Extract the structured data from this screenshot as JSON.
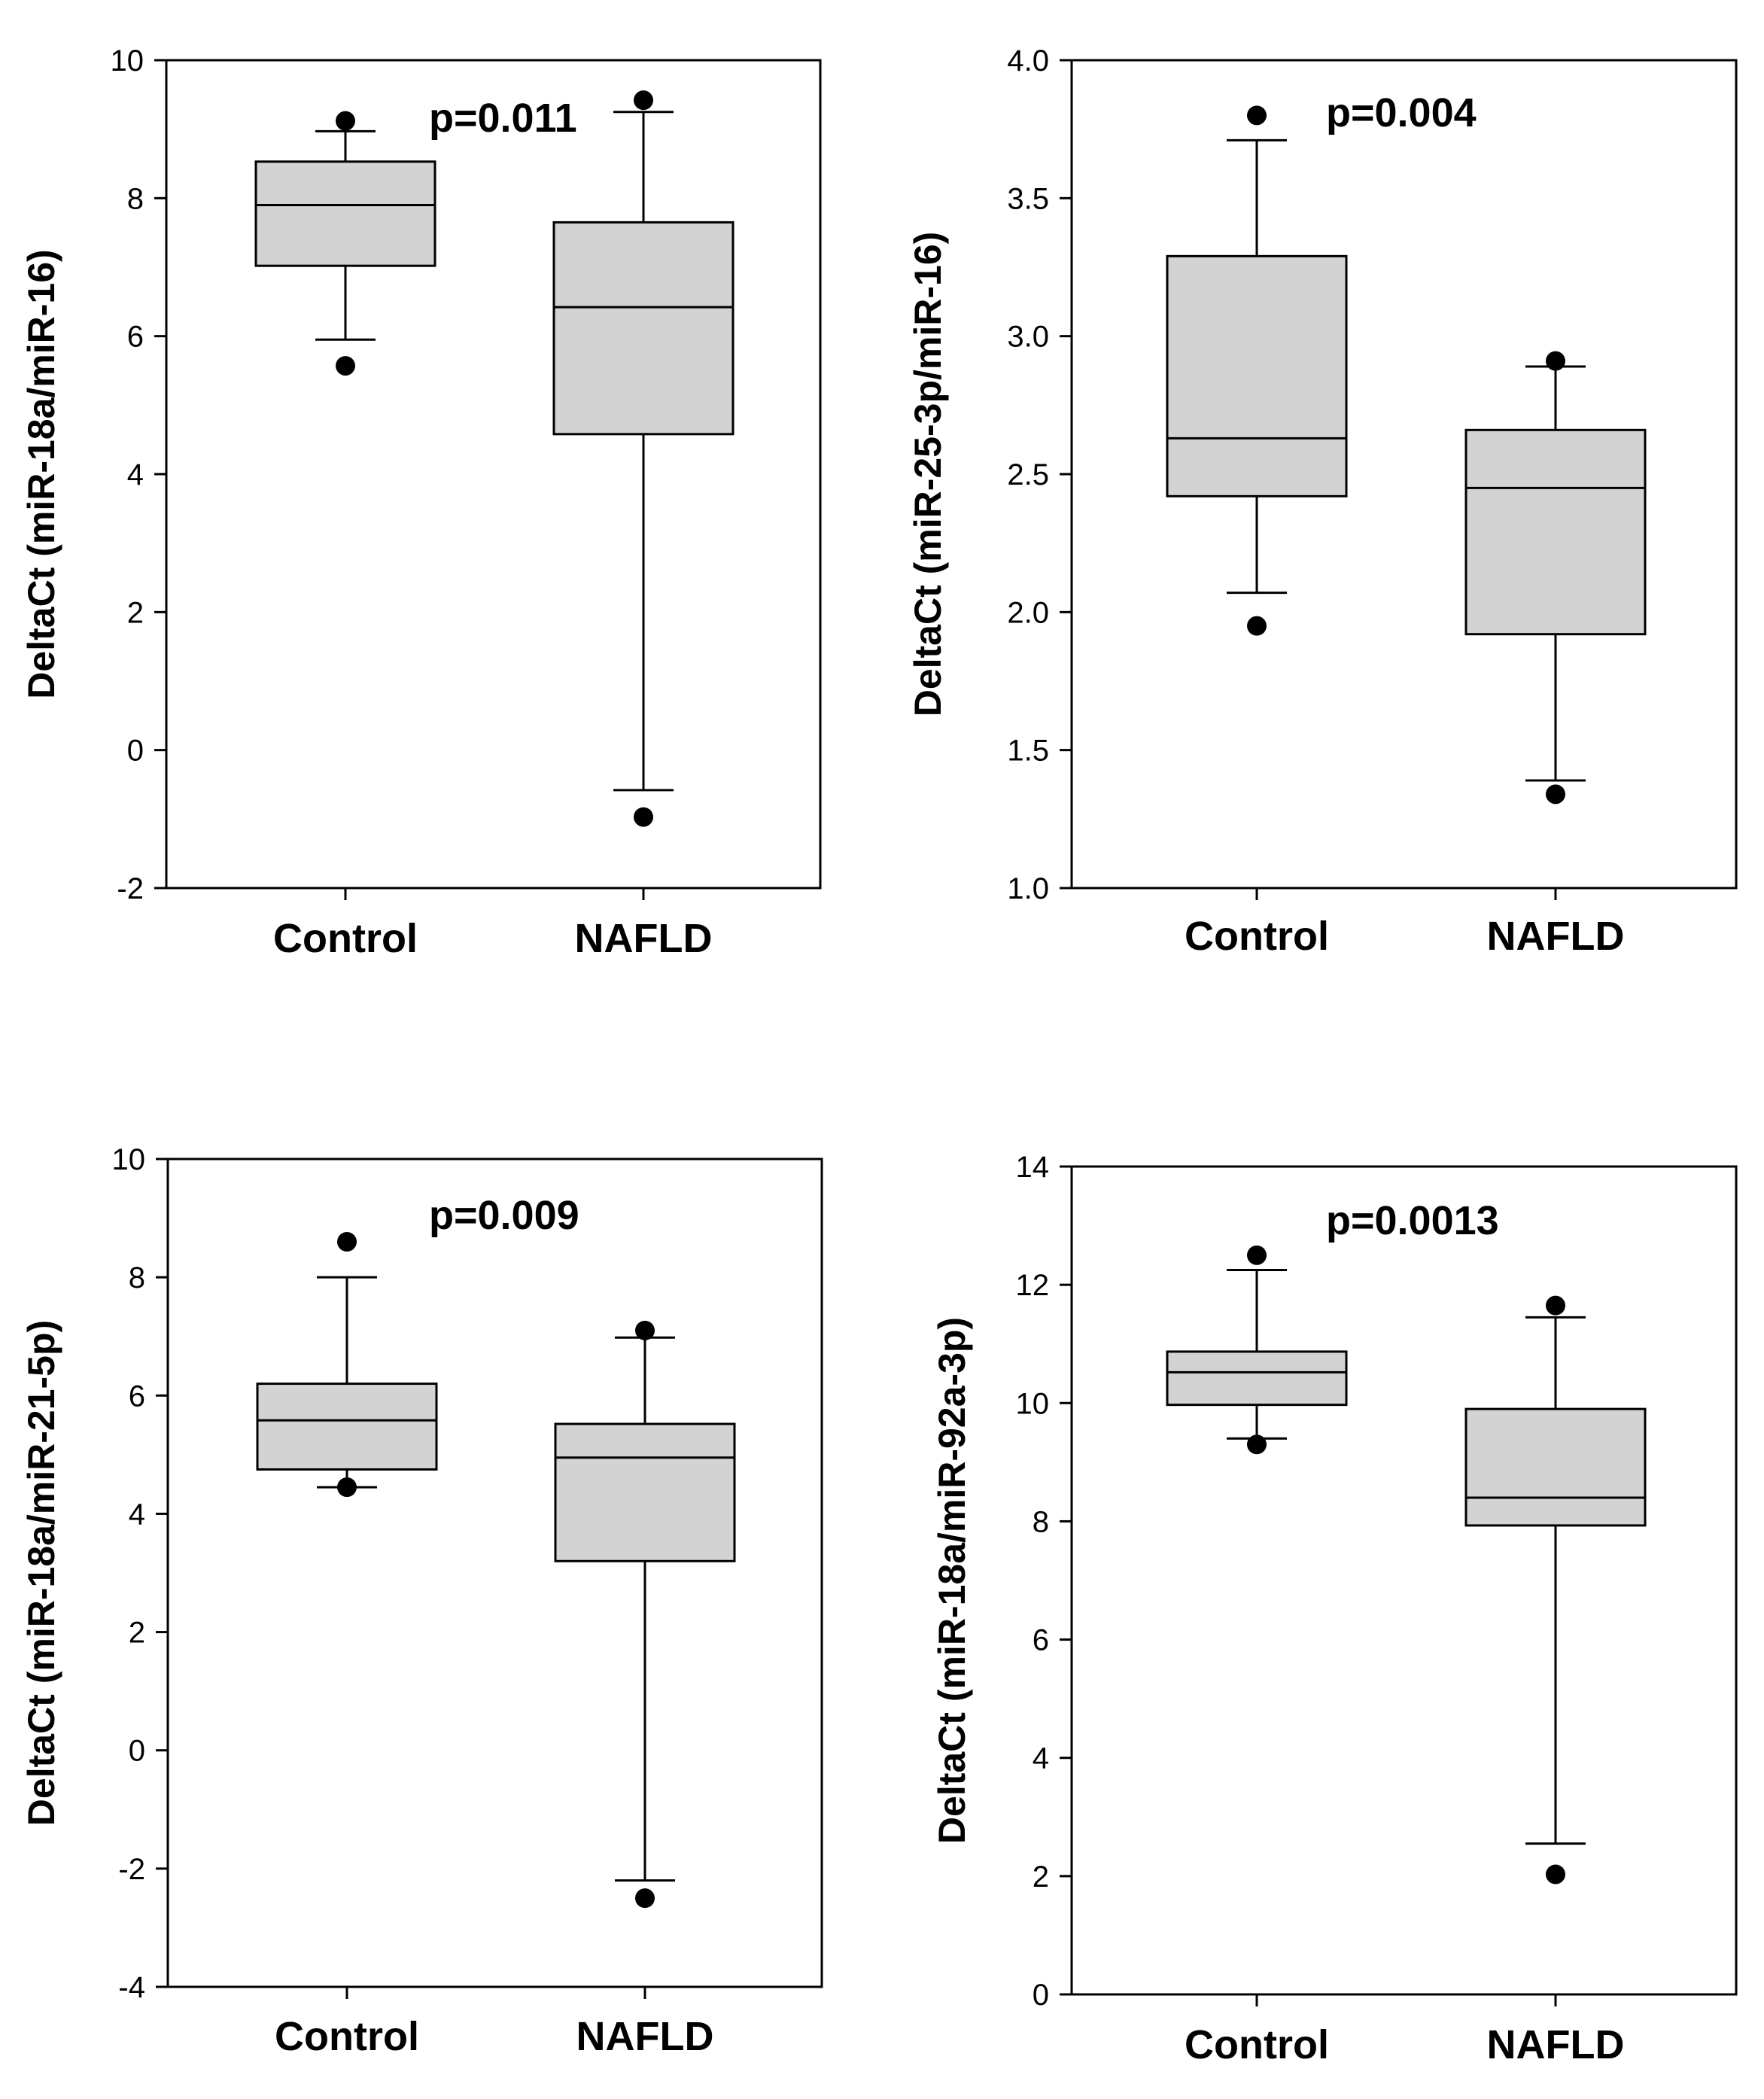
{
  "chart_data": [
    {
      "type": "box",
      "ylabel": "DeltaCt (miR-18a/miR-16)",
      "annotation": "p=0.011",
      "ylim": [
        -2,
        10
      ],
      "yticks": [
        -2,
        0,
        2,
        4,
        6,
        8,
        10
      ],
      "ytick_labels": [
        "-2",
        "0",
        "2",
        "4",
        "6",
        "8",
        "10"
      ],
      "categories": [
        "Control",
        "NAFLD"
      ],
      "boxes": [
        {
          "name": "Control",
          "q1": 7.02,
          "median": 7.9,
          "q3": 8.53,
          "whisker_low": 5.95,
          "whisker_high": 8.97,
          "outliers": [
            5.57,
            9.12
          ]
        },
        {
          "name": "NAFLD",
          "q1": 4.58,
          "median": 6.42,
          "q3": 7.65,
          "whisker_low": -0.58,
          "whisker_high": 9.25,
          "outliers": [
            -0.97,
            9.42
          ]
        }
      ]
    },
    {
      "type": "box",
      "ylabel": "DeltaCt (miR-25-3p/miR-16)",
      "annotation": "p=0.004",
      "ylim": [
        1.0,
        4.0
      ],
      "yticks": [
        1.0,
        1.5,
        2.0,
        2.5,
        3.0,
        3.5,
        4.0
      ],
      "ytick_labels": [
        "1.0",
        "1.5",
        "2.0",
        "2.5",
        "3.0",
        "3.5",
        "4.0"
      ],
      "categories": [
        "Control",
        "NAFLD"
      ],
      "boxes": [
        {
          "name": "Control",
          "q1": 2.42,
          "median": 2.63,
          "q3": 3.29,
          "whisker_low": 2.07,
          "whisker_high": 3.71,
          "outliers": [
            1.95,
            3.8
          ]
        },
        {
          "name": "NAFLD",
          "q1": 1.92,
          "median": 2.45,
          "q3": 2.66,
          "whisker_low": 1.39,
          "whisker_high": 2.89,
          "outliers": [
            1.34,
            2.91
          ]
        }
      ]
    },
    {
      "type": "box",
      "ylabel": "DeltaCt (miR-18a/miR-21-5p)",
      "annotation": "p=0.009",
      "ylim": [
        -4,
        10
      ],
      "yticks": [
        -4,
        -2,
        0,
        2,
        4,
        6,
        8,
        10
      ],
      "ytick_labels": [
        "-4",
        "-2",
        "0",
        "2",
        "4",
        "6",
        "8",
        "10"
      ],
      "categories": [
        "Control",
        "NAFLD"
      ],
      "boxes": [
        {
          "name": "Control",
          "q1": 4.75,
          "median": 5.58,
          "q3": 6.2,
          "whisker_low": 4.45,
          "whisker_high": 8.0,
          "outliers": [
            4.45,
            8.6
          ]
        },
        {
          "name": "NAFLD",
          "q1": 3.2,
          "median": 4.95,
          "q3": 5.52,
          "whisker_low": -2.2,
          "whisker_high": 6.98,
          "outliers": [
            -2.5,
            7.1
          ]
        }
      ]
    },
    {
      "type": "box",
      "ylabel": "DeltaCt (miR-18a/miR-92a-3p)",
      "annotation": "p=0.0013",
      "ylim": [
        0,
        14
      ],
      "yticks": [
        0,
        2,
        4,
        6,
        8,
        10,
        12,
        14
      ],
      "ytick_labels": [
        "0",
        "2",
        "4",
        "6",
        "8",
        "10",
        "12",
        "14"
      ],
      "categories": [
        "Control",
        "NAFLD"
      ],
      "boxes": [
        {
          "name": "Control",
          "q1": 9.97,
          "median": 10.52,
          "q3": 10.87,
          "whisker_low": 9.4,
          "whisker_high": 12.25,
          "outliers": [
            9.3,
            12.5
          ]
        },
        {
          "name": "NAFLD",
          "q1": 7.93,
          "median": 8.4,
          "q3": 9.9,
          "whisker_low": 2.55,
          "whisker_high": 11.45,
          "outliers": [
            2.03,
            11.65
          ]
        }
      ]
    }
  ]
}
